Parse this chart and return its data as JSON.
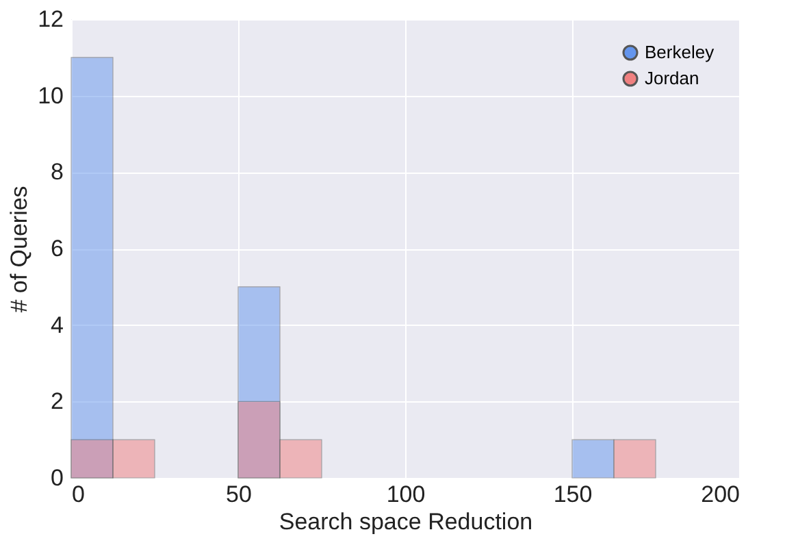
{
  "chart_data": {
    "type": "histogram",
    "xlabel": "Search space Reduction",
    "ylabel": "# of Queries",
    "bins": [
      0,
      12.5,
      25,
      37.5,
      50,
      62.5,
      75,
      87.5,
      100,
      112.5,
      125,
      137.5,
      150,
      162.5,
      175,
      187.5,
      200
    ],
    "series": [
      {
        "name": "Berkeley",
        "color": "#6495ed",
        "values": [
          11,
          0,
          0,
          0,
          5,
          0,
          0,
          0,
          0,
          0,
          0,
          0,
          1,
          0,
          0,
          0
        ]
      },
      {
        "name": "Jordan",
        "color": "#f08080",
        "values": [
          1,
          1,
          0,
          0,
          2,
          1,
          0,
          0,
          0,
          0,
          0,
          0,
          0,
          1,
          0,
          0
        ]
      }
    ],
    "xlim": [
      0,
      200
    ],
    "xticks": [
      0,
      50,
      100,
      150,
      200
    ],
    "ylim": [
      0,
      12
    ],
    "yticks": [
      0,
      2,
      4,
      6,
      8,
      10,
      12
    ],
    "grid": true,
    "legend": "top right"
  }
}
